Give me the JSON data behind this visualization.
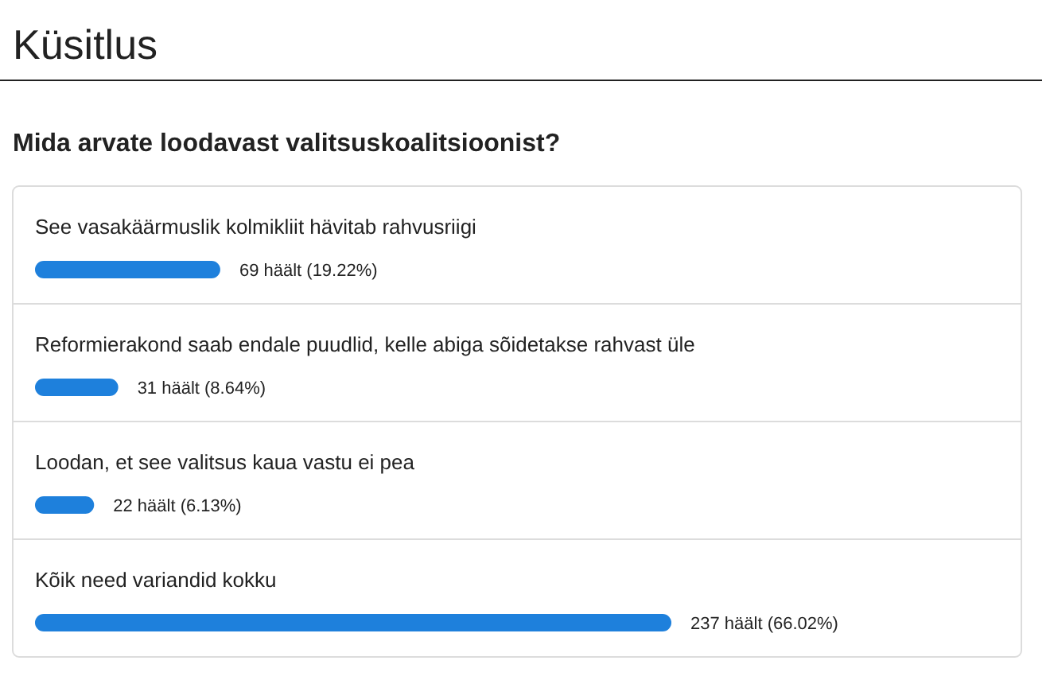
{
  "chart_data": {
    "type": "bar",
    "orientation": "horizontal",
    "title": "Küsitlus",
    "subtitle": "Mida arvate loodavast valitsuskoalitsioonist?",
    "categories": [
      "See vasakäärmuslik kolmikliit hävitab rahvusriigi",
      "Reformierakond saab endale puudlid, kelle abiga sõidetakse rahvast üle",
      "Loodan, et see valitsus kaua vastu ei pea",
      "Kõik need variandid kokku"
    ],
    "values": [
      69,
      31,
      22,
      237
    ],
    "value_labels": [
      "69 häält (19.22%)",
      "31 häält (8.64%)",
      "22 häält (6.13%)",
      "237 häält (66.02%)"
    ],
    "color": "#1e80dc"
  }
}
